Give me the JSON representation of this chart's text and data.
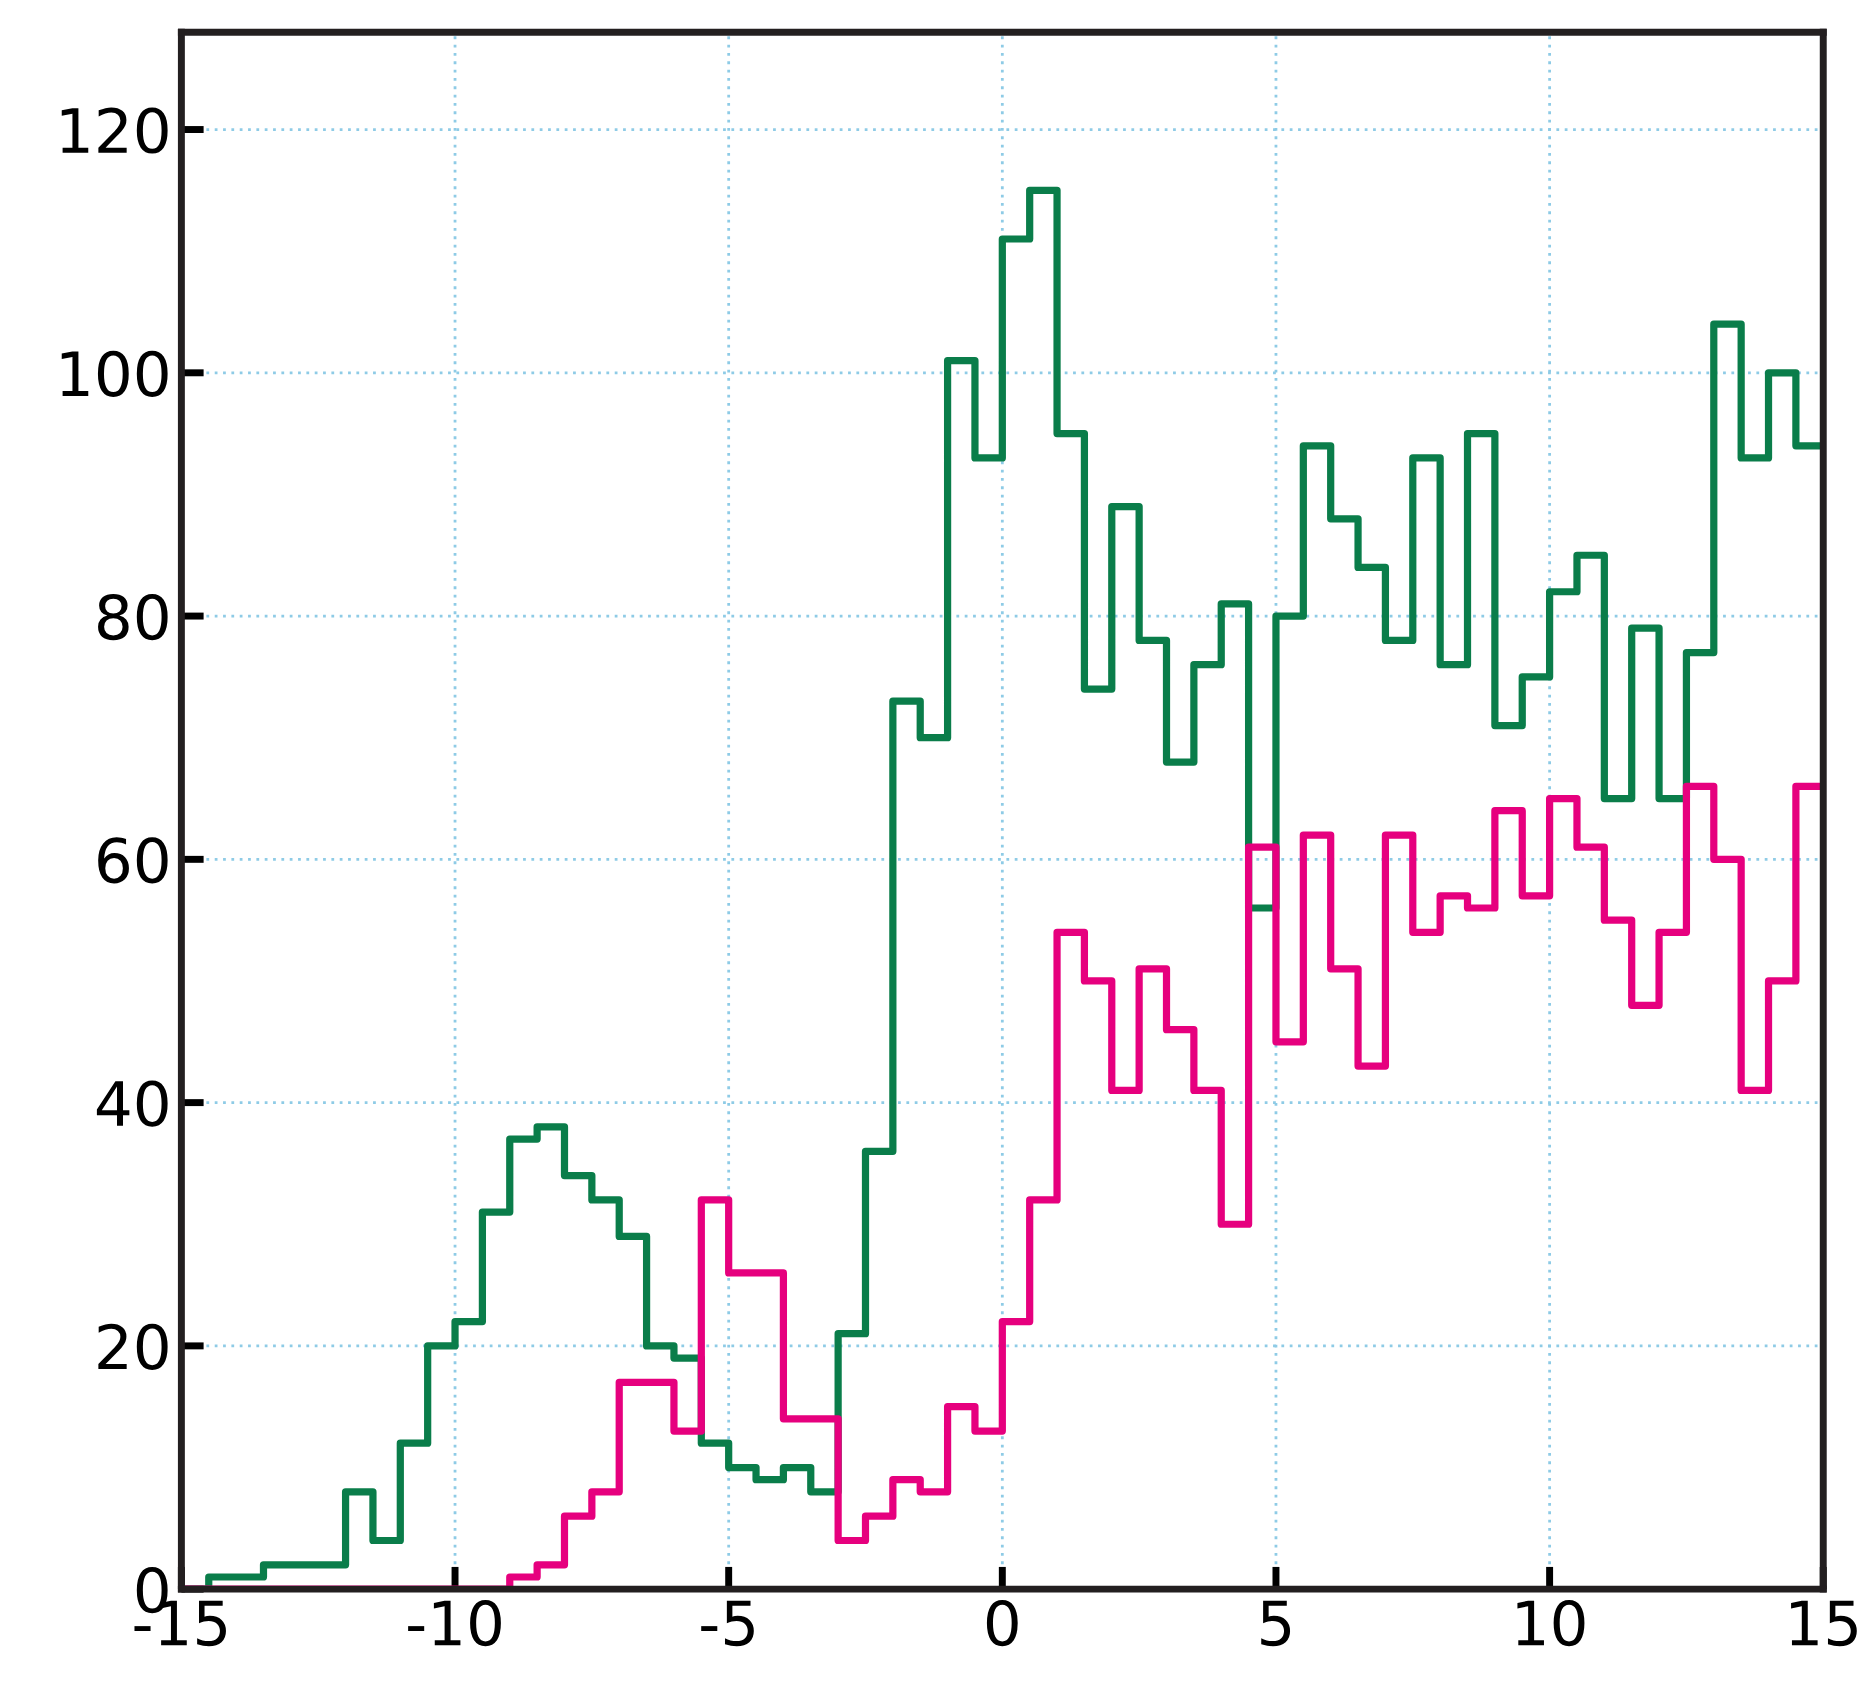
{
  "chart_data": {
    "type": "histogram",
    "bins": [
      -15,
      -14.5,
      -14,
      -13.5,
      -13,
      -12.5,
      -12,
      -11.5,
      -11,
      -10.5,
      -10,
      -9.5,
      -9,
      -8.5,
      -8,
      -7.5,
      -7,
      -6.5,
      -6,
      -5.5,
      -5,
      -4.5,
      -4,
      -3.5,
      -3,
      -2.5,
      -2,
      -1.5,
      -1,
      -0.5,
      0,
      0.5,
      1,
      1.5,
      2,
      2.5,
      3,
      3.5,
      4,
      4.5,
      5,
      5.5,
      6,
      6.5,
      7,
      7.5,
      8,
      8.5,
      9,
      9.5,
      10,
      10.5,
      11,
      11.5,
      12,
      12.5,
      13,
      13.5,
      14,
      14.5,
      15
    ],
    "series": [
      {
        "color": "#0a7d4a",
        "values": [
          0,
          1,
          1,
          2,
          2,
          2,
          8,
          4,
          12,
          20,
          22,
          31,
          37,
          38,
          34,
          32,
          29,
          20,
          19,
          12,
          10,
          9,
          10,
          8,
          21,
          36,
          73,
          70,
          101,
          93,
          111,
          115,
          95,
          74,
          89,
          78,
          68,
          76,
          81,
          56,
          80,
          94,
          88,
          84,
          78,
          93,
          76,
          95,
          71,
          75,
          82,
          85,
          65,
          79,
          65,
          77,
          104,
          93,
          100,
          94
        ]
      },
      {
        "color": "#e6007e",
        "values": [
          0,
          0,
          0,
          0,
          0,
          0,
          0,
          0,
          0,
          0,
          0,
          0,
          1,
          2,
          6,
          8,
          17,
          17,
          13,
          32,
          26,
          26,
          14,
          14,
          4,
          6,
          9,
          8,
          15,
          13,
          22,
          32,
          54,
          50,
          41,
          51,
          46,
          41,
          30,
          61,
          45,
          62,
          51,
          43,
          62,
          54,
          57,
          56,
          64,
          57,
          65,
          61,
          55,
          48,
          54,
          66,
          60,
          41,
          50,
          66
        ]
      }
    ],
    "xlim": [
      -15,
      15
    ],
    "xticks": [
      -15,
      -10,
      -5,
      0,
      5,
      10,
      15
    ],
    "ylim": [
      0,
      128
    ],
    "yticks": [
      0,
      20,
      40,
      60,
      80,
      100,
      120
    ],
    "grid": true
  }
}
